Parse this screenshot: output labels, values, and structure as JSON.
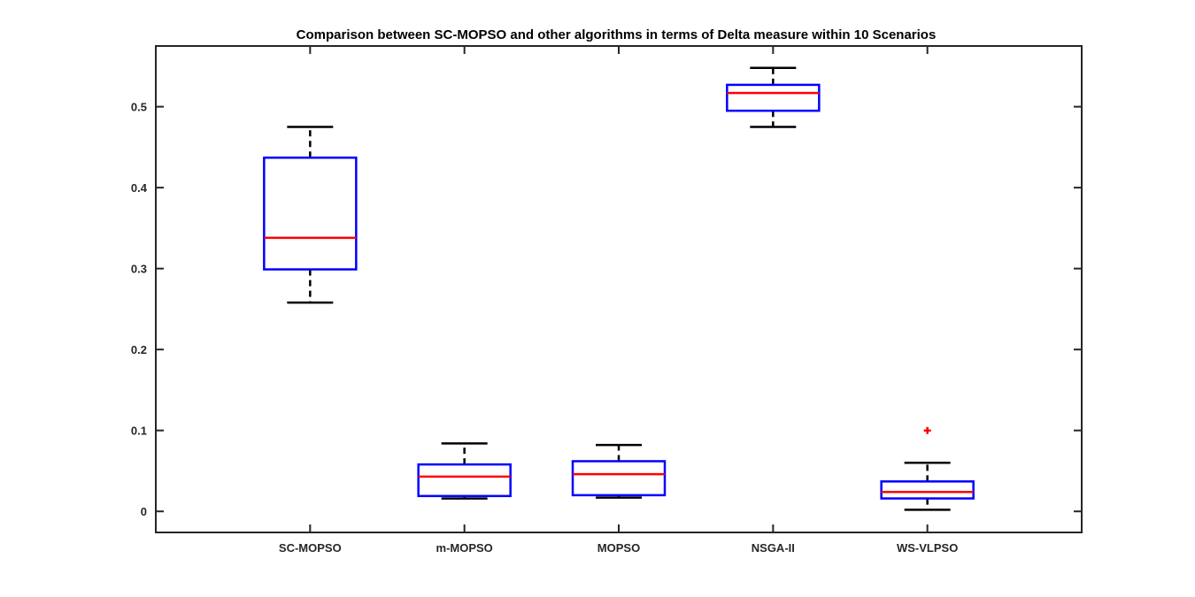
{
  "chart_data": {
    "type": "boxplot",
    "title": "Comparison between SC-MOPSO and other algorithms in terms of Delta measure within 10 Scenarios",
    "xlabel": "",
    "ylabel": "",
    "categories": [
      "SC-MOPSO",
      "m-MOPSO",
      "MOPSO",
      "NSGA-II",
      "WS-VLPSO"
    ],
    "ylim": [
      -0.026,
      0.575
    ],
    "yticks": [
      0,
      0.1,
      0.2,
      0.3,
      0.4,
      0.5
    ],
    "ytick_labels": [
      "0",
      "0.1",
      "0.2",
      "0.3",
      "0.4",
      "0.5"
    ],
    "grid": false,
    "boxes": [
      {
        "category": "SC-MOPSO",
        "whisker_low": 0.258,
        "q1": 0.299,
        "median": 0.338,
        "q3": 0.437,
        "whisker_high": 0.475,
        "outliers": []
      },
      {
        "category": "m-MOPSO",
        "whisker_low": 0.016,
        "q1": 0.019,
        "median": 0.043,
        "q3": 0.058,
        "whisker_high": 0.084,
        "outliers": []
      },
      {
        "category": "MOPSO",
        "whisker_low": 0.017,
        "q1": 0.02,
        "median": 0.046,
        "q3": 0.062,
        "whisker_high": 0.082,
        "outliers": []
      },
      {
        "category": "NSGA-II",
        "whisker_low": 0.475,
        "q1": 0.495,
        "median": 0.517,
        "q3": 0.527,
        "whisker_high": 0.548,
        "outliers": []
      },
      {
        "category": "WS-VLPSO",
        "whisker_low": 0.002,
        "q1": 0.016,
        "median": 0.024,
        "q3": 0.037,
        "whisker_high": 0.06,
        "outliers": [
          0.1
        ]
      }
    ],
    "colors": {
      "box": "#0000ff",
      "median": "#ff0000",
      "whisker": "#000000",
      "outlier": "#ff0000",
      "axis": "#262626"
    }
  }
}
